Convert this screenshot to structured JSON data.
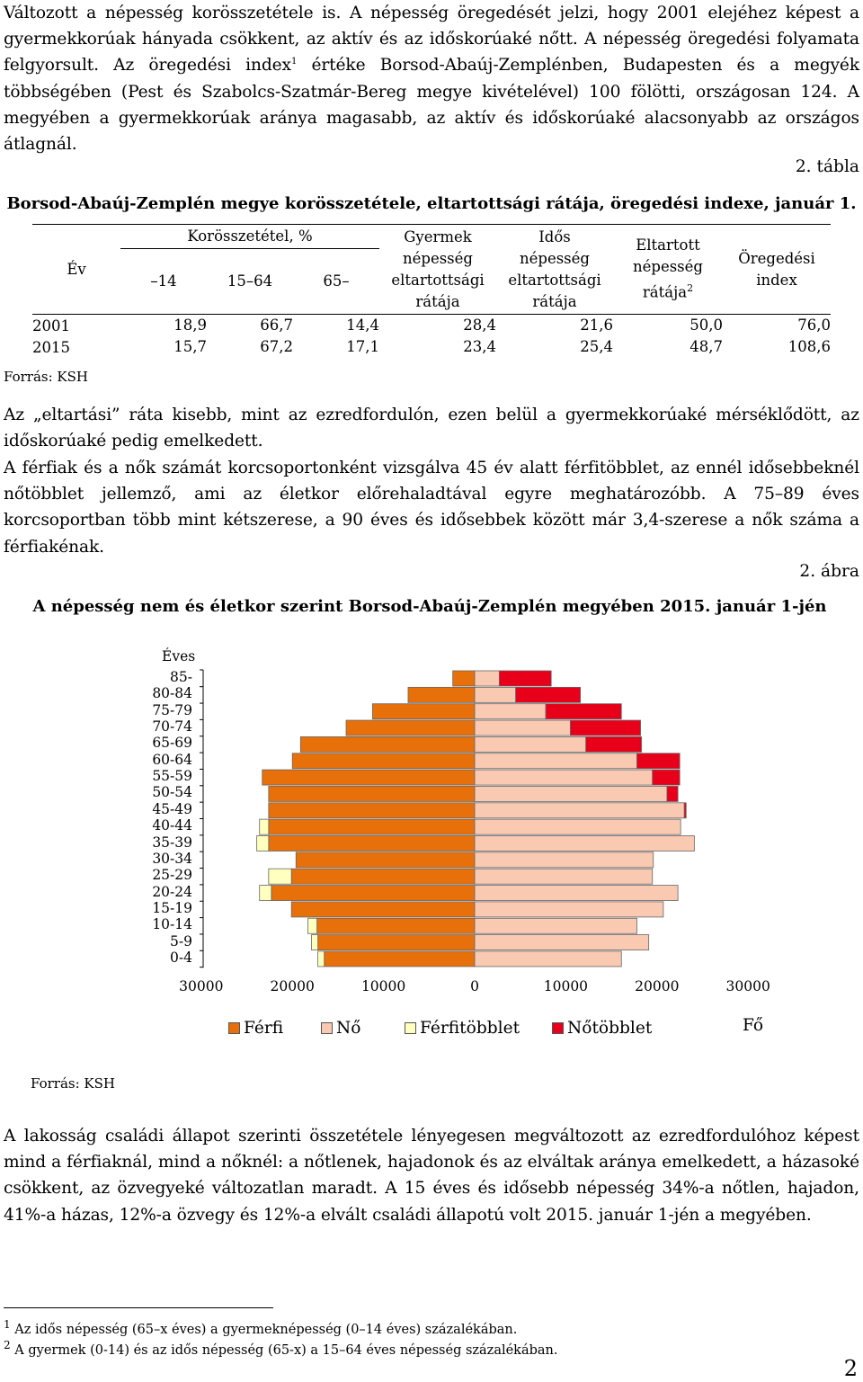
{
  "intro_paragraph": {
    "part1": "Változott a népesség korösszetétele is. A népesség öregedését jelzi, hogy 2001 elejéhez képest a gyermekkorúak hányada csökkent, az aktív és az időskorúaké nőtt. A népesség öregedési folyamata felgyorsult. Az öregedési index",
    "sup": "1",
    "part2": "értéke Borsod-Abaúj-Zemplénben, Budapesten és a megyék többségében (Pest és Szabolcs-Szatmár-Bereg megye kivételével) 100 fölötti, országosan 124. A megyében a gyermekkorúak aránya magasabb, az aktív és időskorúaké alacsonyabb az országos átlagnál."
  },
  "table": {
    "number_label": "2. tábla",
    "caption": "Borsod-Abaúj-Zemplén megye korösszetétele, eltartottsági rátája, öregedési indexe, január 1.",
    "headers": {
      "year": "Év",
      "age_structure": "Korösszetétel, %",
      "age_0_14": "–14",
      "age_15_64": "15–64",
      "age_65": "65–",
      "child_dep_l1": "Gyermek",
      "child_dep_l2": "népesség",
      "child_dep_l3": "eltartottsági",
      "child_dep_l4": "rátája",
      "old_dep_l1": "Idős",
      "old_dep_l2": "népesség",
      "old_dep_l3": "eltartottsági",
      "old_dep_l4": "rátája",
      "total_dep_l1": "Eltartott",
      "total_dep_l2": "népesség",
      "total_dep_l3": "rátája",
      "total_dep_sup": "2",
      "aging_l1": "Öregedési",
      "aging_l2": "index"
    },
    "rows": [
      {
        "year": "2001",
        "a": "18,9",
        "b": "66,7",
        "c": "14,4",
        "d": "28,4",
        "e": "21,6",
        "f": "50,0",
        "g": "76,0"
      },
      {
        "year": "2015",
        "a": "15,7",
        "b": "67,2",
        "c": "17,1",
        "d": "23,4",
        "e": "25,4",
        "f": "48,7",
        "g": "108,6"
      }
    ],
    "source": "Forrás: KSH"
  },
  "paragraph2": "Az „eltartási” ráta kisebb, mint az ezredfordulón, ezen belül a gyermekkorúaké mérséklődött, az időskorúaké pedig emelkedett.",
  "paragraph3": "A férfiak és a nők számát korcsoportonként vizsgálva 45 év alatt férfitöbblet, az ennél idősebbeknél nőtöbblet jellemző, ami az életkor előrehaladtával egyre meghatározóbb. A 75–89 éves korcsoportban több mint kétszerese, a 90 éves és idősebbek között már 3,4-szerese a nők száma a férfiakénak.",
  "figure": {
    "number_label": "2. ábra",
    "caption": "A népesség nem és életkor szerint Borsod-Abaúj-Zemplén megyében 2015. január 1-jén",
    "source": "Forrás: KSH"
  },
  "chart_data": {
    "type": "bar",
    "title": "A népesség nem és életkor szerint Borsod-Abaúj-Zemplén megyében 2015. január 1-jén",
    "ylabel": "Éves",
    "xlabel": "",
    "unit_label": "Fő",
    "categories": [
      "85-",
      "80-84",
      "75-79",
      "70-74",
      "65-69",
      "60-64",
      "55-59",
      "50-54",
      "45-49",
      "40-44",
      "35-39",
      "30-34",
      "25-29",
      "20-24",
      "15-19",
      "10-14",
      "5-9",
      "0-4"
    ],
    "x_ticks": [
      "30000",
      "20000",
      "10000",
      "0",
      "10000",
      "20000",
      "30000"
    ],
    "xlim": [
      -30000,
      30000
    ],
    "series": [
      {
        "name": "Férfi",
        "side": "left",
        "color": "#E8700A",
        "values": [
          2400,
          7300,
          11200,
          14100,
          19100,
          20000,
          23300,
          22600,
          22600,
          22600,
          22600,
          19600,
          20100,
          22300,
          20100,
          17300,
          17200,
          16500
        ]
      },
      {
        "name": "Nő",
        "side": "right",
        "color": "#F9C9B2",
        "values": [
          2700,
          4500,
          7800,
          10500,
          12200,
          17800,
          19500,
          21100,
          23000,
          22600,
          24100,
          19600,
          19500,
          22300,
          20700,
          17800,
          19100,
          16100
        ]
      },
      {
        "name": "Férfitöbblet",
        "side": "left",
        "color": "#FFFFBF",
        "values": [
          0,
          0,
          0,
          0,
          0,
          0,
          0,
          0,
          0,
          1000,
          1300,
          0,
          2500,
          1300,
          0,
          1000,
          700,
          700
        ]
      },
      {
        "name": "Nőtöbblet",
        "side": "right",
        "color": "#E8001A",
        "values": [
          5700,
          7100,
          8300,
          7700,
          6100,
          4700,
          3000,
          1200,
          200,
          0,
          0,
          0,
          0,
          0,
          0,
          0,
          0,
          0
        ]
      }
    ],
    "legend": [
      "Férfi",
      "Nő",
      "Férfitöbblet",
      "Nőtöbblet"
    ],
    "legend_position": "bottom",
    "grid": false
  },
  "paragraph4": "A lakosság családi állapot szerinti összetétele lényegesen megváltozott az ezredfordulóhoz képest mind a férfiaknál, mind a nőknél: a nőtlenek, hajadonok és az elváltak aránya emelkedett, a házasoké csökkent, az özvegyeké változatlan maradt. A 15 éves és idősebb népesség 34%-a nőtlen, hajadon, 41%-a házas, 12%-a özvegy és 12%-a elvált családi állapotú volt 2015. január 1-jén a megyében.",
  "footnotes": {
    "fn1_num": "1",
    "fn1": "Az idős népesség (65–x éves) a gyermeknépesség (0–14 éves) százalékában.",
    "fn2_num": "2",
    "fn2": "A gyermek (0-14) és az idős népesség (65-x) a 15–64 éves népesség százalékában."
  },
  "page_number": "2"
}
